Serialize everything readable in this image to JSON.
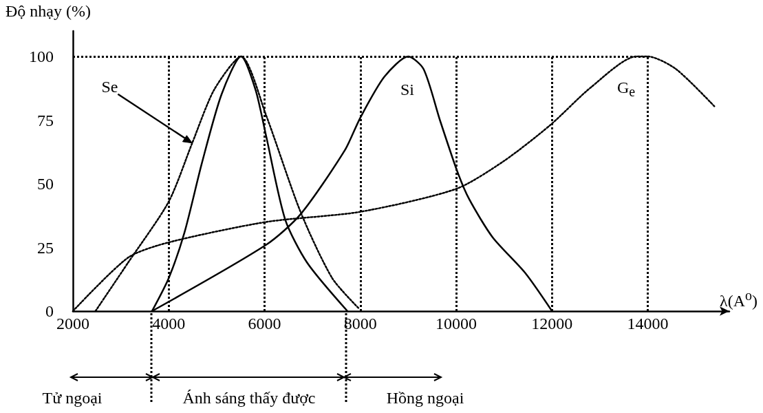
{
  "chart_data": {
    "type": "line",
    "xlabel": "λ(A$^{o}$)",
    "ylabel": "Độ nhạy (%)",
    "xlim": [
      2000,
      15700
    ],
    "xticks": [
      2000,
      4000,
      6000,
      8000,
      10000,
      12000,
      14000
    ],
    "ylim": [
      0,
      110
    ],
    "yticks": [
      0,
      25,
      50,
      75,
      100
    ],
    "series": [
      {
        "color": "#000000",
        "line_style": "dotted",
        "x": [
          2470,
          3150,
          4000,
          4490,
          4950,
          5510,
          6030,
          6750,
          7410,
          7970
        ],
        "values": [
          0,
          19,
          43,
          66,
          87,
          100,
          77,
          39,
          13,
          1
        ]
      },
      {
        "color": "#000000",
        "line_style": "solid",
        "x": [
          3650,
          4000,
          4330,
          4690,
          5100,
          5510,
          5810,
          6030,
          6430,
          6890,
          7730
        ],
        "values": [
          0,
          13,
          31,
          58,
          85,
          100,
          87,
          69,
          36,
          19,
          0
        ]
      },
      {
        "color": "#000000",
        "line_style": "solid",
        "x": [
          3650,
          6030,
          6750,
          7670,
          8000,
          8500,
          9000,
          9320,
          9660,
          10020,
          10270,
          10760,
          11440,
          12000
        ],
        "values": [
          0,
          26,
          38,
          63,
          76,
          92,
          100,
          95,
          75,
          55,
          44,
          29,
          15,
          0
        ]
      },
      {
        "color": "#000000",
        "line_style": "dotted",
        "x": [
          2000,
          3150,
          4000,
          6030,
          8000,
          10000,
          11000,
          11960,
          12820,
          13760,
          14000,
          14590,
          15410
        ],
        "values": [
          0,
          21,
          27,
          35,
          39,
          48,
          59,
          73,
          88,
          100,
          100,
          95,
          80
        ]
      }
    ],
    "ref_lines": [
      {
        "axis": "x",
        "value": 4000
      },
      {
        "axis": "x",
        "value": 6000
      },
      {
        "axis": "x",
        "value": 8000
      },
      {
        "axis": "x",
        "value": 10000
      },
      {
        "axis": "x",
        "value": 12000
      },
      {
        "axis": "x",
        "value": 14000
      },
      {
        "axis": "y",
        "value": 100
      }
    ],
    "annotations": [
      {
        "text": "Se",
        "x": 4490,
        "y": 66
      },
      "Si",
      "G$_{e}$",
      "Tử ngoại",
      "Ánh sáng thấy được",
      "Hồng ngoại"
    ]
  }
}
